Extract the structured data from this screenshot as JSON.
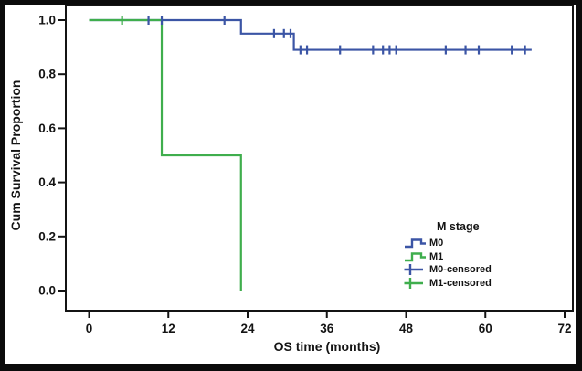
{
  "chart_data": {
    "type": "line",
    "subtype": "kaplan-meier-step-survival",
    "title": "",
    "xlabel": "OS time (months)",
    "ylabel": "Cum Survival Proportion",
    "xlim": [
      0,
      72
    ],
    "ylim": [
      0.0,
      1.0
    ],
    "xticks": [
      0,
      12,
      24,
      36,
      48,
      60,
      72
    ],
    "xticklabels": [
      "0",
      "12",
      "24",
      "36",
      "48",
      "60",
      "72"
    ],
    "yticks": [
      0.0,
      0.2,
      0.4,
      0.6,
      0.8,
      1.0
    ],
    "yticklabels": [
      "0.0",
      "0.2",
      "0.4",
      "0.6",
      "0.8",
      "1.0"
    ],
    "grid": false,
    "colors": {
      "m0_blue": "#3b55a5",
      "m1_green": "#3fae4d",
      "axis_black": "#141414",
      "frame_black": "#0b0b0b",
      "background": "#ffffff"
    },
    "series": [
      {
        "name": "M0",
        "color": "#3b55a5",
        "steps": [
          [
            0,
            1.0
          ],
          [
            23,
            1.0
          ],
          [
            23,
            0.95
          ],
          [
            31,
            0.95
          ],
          [
            31,
            0.89
          ],
          [
            67,
            0.89
          ]
        ]
      },
      {
        "name": "M1",
        "color": "#3fae4d",
        "steps": [
          [
            0,
            1.0
          ],
          [
            11,
            1.0
          ],
          [
            11,
            0.5
          ],
          [
            23,
            0.5
          ],
          [
            23,
            0.0
          ]
        ]
      }
    ],
    "censored": [
      {
        "name": "M0-censored",
        "color": "#3b55a5",
        "points": [
          [
            9,
            1.0
          ],
          [
            11,
            1.0
          ],
          [
            20.5,
            1.0
          ],
          [
            28,
            0.95
          ],
          [
            29.5,
            0.95
          ],
          [
            30.5,
            0.95
          ],
          [
            32,
            0.89
          ],
          [
            33,
            0.89
          ],
          [
            38,
            0.89
          ],
          [
            43,
            0.89
          ],
          [
            44.5,
            0.89
          ],
          [
            45.5,
            0.89
          ],
          [
            46.5,
            0.89
          ],
          [
            54,
            0.89
          ],
          [
            57,
            0.89
          ],
          [
            59,
            0.89
          ],
          [
            64,
            0.89
          ],
          [
            66,
            0.89
          ]
        ]
      },
      {
        "name": "M1-censored",
        "color": "#3fae4d",
        "points": [
          [
            5,
            1.0
          ]
        ]
      }
    ],
    "legend": {
      "title": "M stage",
      "position": "lower-right",
      "items": [
        {
          "label": "M0",
          "symbol": "step",
          "color": "#3b55a5"
        },
        {
          "label": "M1",
          "symbol": "step",
          "color": "#3fae4d"
        },
        {
          "label": "M0-censored",
          "symbol": "plus",
          "color": "#3b55a5"
        },
        {
          "label": "M1-censored",
          "symbol": "plus",
          "color": "#3fae4d"
        }
      ]
    }
  }
}
